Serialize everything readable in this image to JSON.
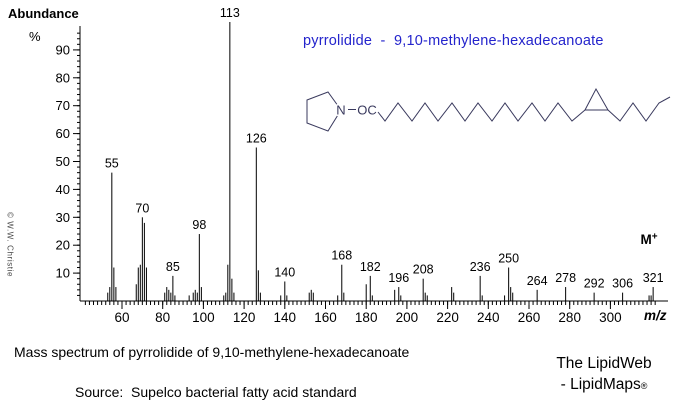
{
  "window": {
    "background": "#ffffff"
  },
  "y_axis_header": {
    "title": "Abundance",
    "unit": "%"
  },
  "title": {
    "text": "pyrrolidide  -  9,10-methylene-hexadecanoate",
    "color": "#2424cc"
  },
  "watermark": {
    "text": "© W.W. Christie"
  },
  "molecular_ion": {
    "base": "M",
    "charge": "+"
  },
  "structure_labels": {
    "nitrogen": "N",
    "carbonyl": "OC"
  },
  "captions": {
    "main": "Mass spectrum of pyrrolidide of 9,10-methylene-hexadecanoate",
    "source": "Source:  Supelco bacterial fatty acid standard",
    "credit_line1": "The LipidWeb",
    "credit_line2": "- LipidMaps",
    "credit_registered": "®"
  },
  "chart_data": {
    "type": "bar",
    "subtype": "mass-spectrum-stick-plot",
    "title": "pyrrolidide - 9,10-methylene-hexadecanoate",
    "xlabel": "m/z",
    "ylabel": "Abundance %",
    "xlim": [
      40,
      330
    ],
    "ylim": [
      0,
      100
    ],
    "grid": false,
    "legend": false,
    "x_major_ticks": [
      60,
      80,
      100,
      120,
      140,
      160,
      180,
      200,
      220,
      240,
      260,
      280,
      300
    ],
    "x_minor_tick_step": 2,
    "y_major_ticks": [
      10,
      20,
      30,
      40,
      50,
      60,
      70,
      80,
      90
    ],
    "y_minor_tick_step": 2,
    "labeled_peaks": [
      55,
      70,
      85,
      98,
      113,
      126,
      140,
      168,
      182,
      196,
      208,
      236,
      250,
      264,
      278,
      292,
      306,
      321
    ],
    "molecular_ion_mz": 321,
    "peaks": [
      {
        "mz": 53,
        "intensity": 3
      },
      {
        "mz": 54,
        "intensity": 5
      },
      {
        "mz": 55,
        "intensity": 46
      },
      {
        "mz": 56,
        "intensity": 12
      },
      {
        "mz": 57,
        "intensity": 5
      },
      {
        "mz": 67,
        "intensity": 6
      },
      {
        "mz": 68,
        "intensity": 12
      },
      {
        "mz": 69,
        "intensity": 13
      },
      {
        "mz": 70,
        "intensity": 30
      },
      {
        "mz": 71,
        "intensity": 28
      },
      {
        "mz": 72,
        "intensity": 12
      },
      {
        "mz": 81,
        "intensity": 3
      },
      {
        "mz": 82,
        "intensity": 5
      },
      {
        "mz": 83,
        "intensity": 4
      },
      {
        "mz": 84,
        "intensity": 3
      },
      {
        "mz": 85,
        "intensity": 9
      },
      {
        "mz": 86,
        "intensity": 2
      },
      {
        "mz": 93,
        "intensity": 2
      },
      {
        "mz": 95,
        "intensity": 3
      },
      {
        "mz": 96,
        "intensity": 4
      },
      {
        "mz": 97,
        "intensity": 3
      },
      {
        "mz": 98,
        "intensity": 24
      },
      {
        "mz": 99,
        "intensity": 5
      },
      {
        "mz": 110,
        "intensity": 2
      },
      {
        "mz": 111,
        "intensity": 3
      },
      {
        "mz": 112,
        "intensity": 13
      },
      {
        "mz": 113,
        "intensity": 100
      },
      {
        "mz": 114,
        "intensity": 8
      },
      {
        "mz": 115,
        "intensity": 3
      },
      {
        "mz": 126,
        "intensity": 55
      },
      {
        "mz": 127,
        "intensity": 11
      },
      {
        "mz": 128,
        "intensity": 3
      },
      {
        "mz": 138,
        "intensity": 2
      },
      {
        "mz": 140,
        "intensity": 7
      },
      {
        "mz": 141,
        "intensity": 2
      },
      {
        "mz": 152,
        "intensity": 3
      },
      {
        "mz": 153,
        "intensity": 4
      },
      {
        "mz": 154,
        "intensity": 3
      },
      {
        "mz": 166,
        "intensity": 2
      },
      {
        "mz": 168,
        "intensity": 13
      },
      {
        "mz": 169,
        "intensity": 3
      },
      {
        "mz": 180,
        "intensity": 6
      },
      {
        "mz": 182,
        "intensity": 9
      },
      {
        "mz": 183,
        "intensity": 2
      },
      {
        "mz": 194,
        "intensity": 4
      },
      {
        "mz": 196,
        "intensity": 5
      },
      {
        "mz": 197,
        "intensity": 2
      },
      {
        "mz": 208,
        "intensity": 8
      },
      {
        "mz": 209,
        "intensity": 3
      },
      {
        "mz": 210,
        "intensity": 2
      },
      {
        "mz": 222,
        "intensity": 5
      },
      {
        "mz": 223,
        "intensity": 3
      },
      {
        "mz": 236,
        "intensity": 9
      },
      {
        "mz": 237,
        "intensity": 2
      },
      {
        "mz": 248,
        "intensity": 2
      },
      {
        "mz": 250,
        "intensity": 12
      },
      {
        "mz": 251,
        "intensity": 5
      },
      {
        "mz": 252,
        "intensity": 3
      },
      {
        "mz": 264,
        "intensity": 4
      },
      {
        "mz": 278,
        "intensity": 5
      },
      {
        "mz": 292,
        "intensity": 3
      },
      {
        "mz": 306,
        "intensity": 3
      },
      {
        "mz": 319,
        "intensity": 2
      },
      {
        "mz": 320,
        "intensity": 2
      },
      {
        "mz": 321,
        "intensity": 5
      }
    ]
  }
}
